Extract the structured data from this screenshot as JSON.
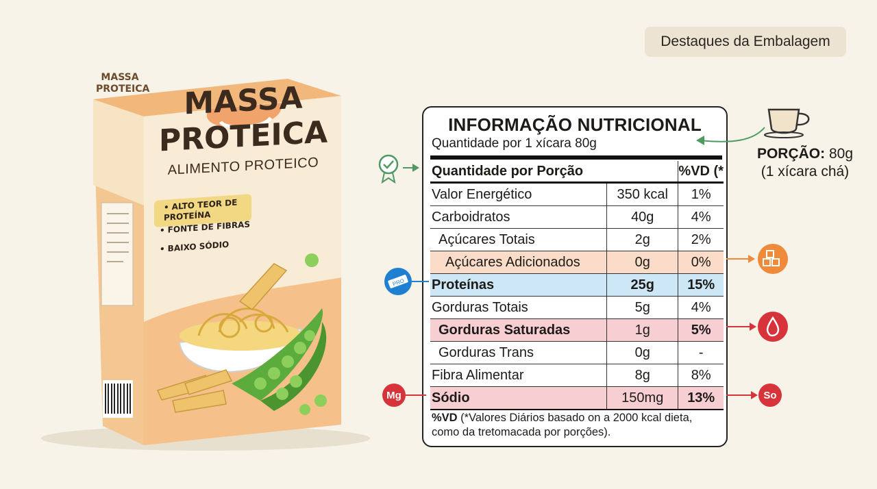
{
  "header": {
    "tag": "Destaques da Embalagem"
  },
  "package": {
    "side_text": "MASSA PROTEICA",
    "title": "MASSA PROTEICA",
    "subtitle": "ALIMENTO PROTEICO",
    "claims": [
      "ALTO TEOR DE PROTEÍNA",
      "FONTE DE FIBRAS",
      "BAIXO SÓDIO"
    ]
  },
  "label": {
    "title": "INFORMAÇÃO NUTRICIONAL",
    "serving": "Quantidade por 1 xícara 80g",
    "col_header": "Quantidade por Porção",
    "vd_header": "%VD (*",
    "rows": [
      {
        "name": "Valor Energético",
        "amount": "350 kcal",
        "vd": "1%"
      },
      {
        "name": "Carboidratos",
        "amount": "40g",
        "vd": "4%"
      },
      {
        "name": "Açúcares Totais",
        "amount": "2g",
        "vd": "2%"
      },
      {
        "name": "Açúcares Adicionados",
        "amount": "0g",
        "vd": "0%"
      },
      {
        "name": "Proteínas",
        "amount": "25g",
        "vd": "15%"
      },
      {
        "name": "Gorduras Totais",
        "amount": "5g",
        "vd": "4%"
      },
      {
        "name": "Gorduras Saturadas",
        "amount": "1g",
        "vd": "5%"
      },
      {
        "name": "Gorduras Trans",
        "amount": "0g",
        "vd": "-"
      },
      {
        "name": "Fibra Alimentar",
        "amount": "8g",
        "vd": "8%"
      },
      {
        "name": "Sódio",
        "amount": "150mg",
        "vd": "13%"
      }
    ],
    "footnote_bold": "%VD",
    "footnote": " (*Valores Diários basado on a 2000 kcal dieta, como da tretomacada por porções)."
  },
  "portion": {
    "label": "PORÇÃO:",
    "value": " 80g",
    "note": "(1 xícara chá)"
  },
  "badges": {
    "mg": "Mg",
    "so": "So"
  },
  "icons": [
    "badge-check-icon",
    "protein-bar-icon",
    "sugar-cubes-icon",
    "drop-icon",
    "coffee-cup-icon"
  ],
  "colors": {
    "orange_row": "#fbdcc8",
    "blue_row": "#cde7f7",
    "red_row": "#f7cfd2",
    "green_arrow": "#4f9a63",
    "orange_arrow": "#ee8a3a",
    "red_arrow": "#d7333a",
    "blue_icon": "#1f7fd1"
  }
}
